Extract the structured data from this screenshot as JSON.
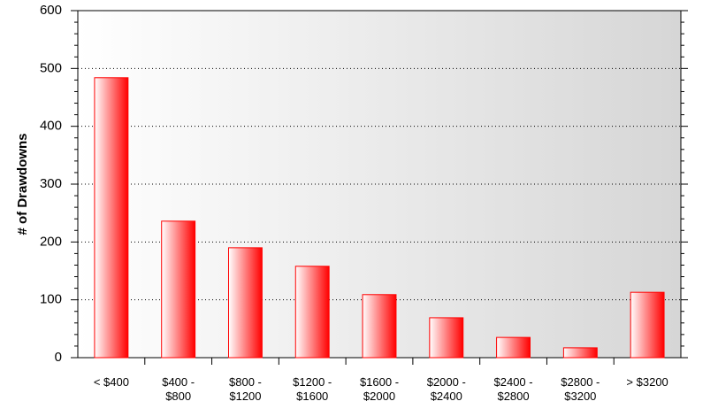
{
  "chart_data": {
    "type": "bar",
    "y_label": "# of Drawdowns",
    "categories": [
      "< $400",
      "$400 -\n$800",
      "$800 -\n$1200",
      "$1200 -\n$1600",
      "$1600 -\n$2000",
      "$2000 -\n$2400",
      "$2400 -\n$2800",
      "$2800 -\n$3200",
      "> $3200"
    ],
    "values": [
      484,
      236,
      190,
      158,
      109,
      69,
      35,
      17,
      113
    ],
    "color": "#ff0000",
    "ylim": [
      0,
      600
    ],
    "yticks": [
      0,
      100,
      200,
      300,
      400,
      500,
      600
    ],
    "grid": true
  }
}
